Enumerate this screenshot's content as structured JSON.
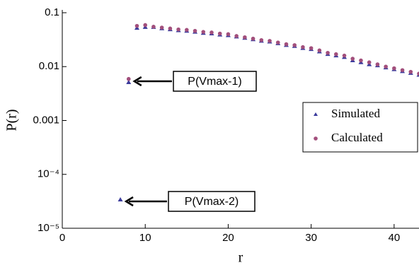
{
  "chart_data": {
    "type": "scatter",
    "x_label": "r",
    "y_label": "P(r)",
    "xlim": [
      0,
      43
    ],
    "xticks": [
      0,
      10,
      20,
      30,
      40
    ],
    "ylim": [
      1e-05,
      0.1
    ],
    "ylog": true,
    "yticks": [
      {
        "value": 1e-05,
        "label": "10⁻⁵"
      },
      {
        "value": 0.0001,
        "label": "10⁻⁴"
      },
      0.001,
      0.01,
      0.1
    ],
    "legend": "right",
    "series": [
      {
        "name": "Simulated",
        "color": "#3b3b9c",
        "marker": "triangle",
        "x": [
          7,
          8,
          9,
          10,
          11,
          12,
          13,
          14,
          15,
          16,
          17,
          18,
          19,
          20,
          21,
          22,
          23,
          24,
          25,
          26,
          27,
          28,
          29,
          30,
          31,
          32,
          33,
          34,
          35,
          36,
          37,
          38,
          39,
          40,
          41,
          42,
          43
        ],
        "values": [
          3.4e-05,
          0.0051,
          0.052,
          0.054,
          0.054,
          0.051,
          0.049,
          0.047,
          0.046,
          0.044,
          0.042,
          0.041,
          0.039,
          0.038,
          0.036,
          0.034,
          0.032,
          0.03,
          0.029,
          0.027,
          0.025,
          0.024,
          0.022,
          0.021,
          0.019,
          0.017,
          0.016,
          0.015,
          0.013,
          0.012,
          0.011,
          0.0105,
          0.0096,
          0.0089,
          0.0082,
          0.0076,
          0.007
        ]
      },
      {
        "name": "Calculated",
        "color": "#a24f7c",
        "marker": "circle",
        "x": [
          8,
          9,
          10,
          11,
          12,
          13,
          14,
          15,
          16,
          17,
          18,
          19,
          20,
          21,
          22,
          23,
          24,
          25,
          26,
          27,
          28,
          29,
          30,
          31,
          32,
          33,
          34,
          35,
          36,
          37,
          38,
          39,
          40,
          41,
          42,
          43
        ],
        "values": [
          0.0059,
          0.057,
          0.059,
          0.055,
          0.053,
          0.051,
          0.049,
          0.048,
          0.046,
          0.044,
          0.043,
          0.041,
          0.04,
          0.037,
          0.035,
          0.033,
          0.031,
          0.03,
          0.028,
          0.026,
          0.025,
          0.023,
          0.022,
          0.02,
          0.018,
          0.017,
          0.016,
          0.014,
          0.013,
          0.012,
          0.011,
          0.01,
          0.0093,
          0.0086,
          0.008,
          0.0074
        ]
      }
    ],
    "annotations": [
      {
        "text": "P(Vmax-1)"
      },
      {
        "text": "P(Vmax-2)"
      }
    ]
  }
}
